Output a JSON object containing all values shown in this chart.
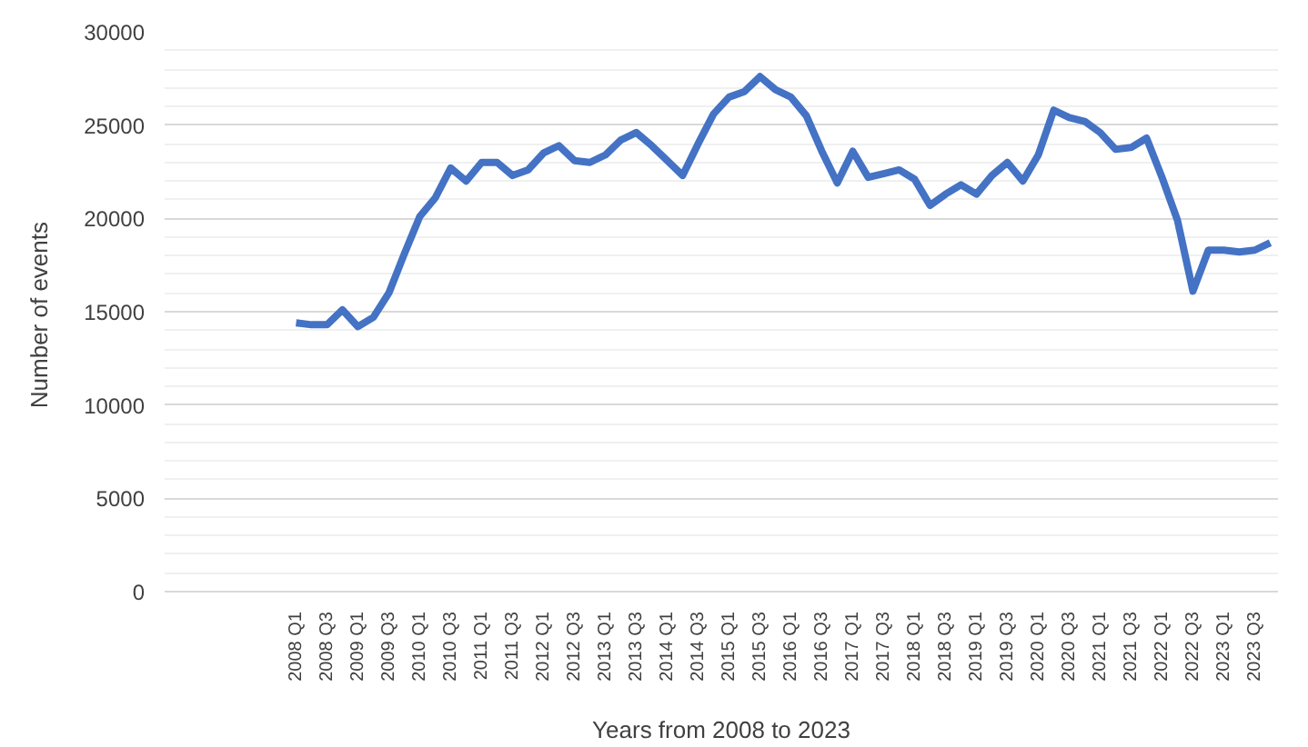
{
  "chart_data": {
    "type": "line",
    "xlabel": "Years from 2008 to 2023",
    "ylabel": "Number  of events",
    "categories": [
      null,
      null,
      null,
      null,
      null,
      null,
      null,
      null,
      "2008 Q1",
      null,
      "2008 Q3",
      null,
      "2009 Q1",
      null,
      "2009 Q3",
      null,
      "2010 Q1",
      null,
      "2010 Q3",
      null,
      "2011 Q1",
      null,
      "2011 Q3",
      null,
      "2012 Q1",
      null,
      "2012 Q3",
      null,
      "2013 Q1",
      null,
      "2013 Q3",
      null,
      "2014 Q1",
      null,
      "2014 Q3",
      null,
      "2015 Q1",
      null,
      "2015 Q3",
      null,
      "2016 Q1",
      null,
      "2016 Q3",
      null,
      "2017 Q1",
      null,
      "2017 Q3",
      null,
      "2018 Q1",
      null,
      "2018 Q3",
      null,
      "2019 Q1",
      null,
      "2019 Q3",
      null,
      "2020 Q1",
      null,
      "2020 Q3",
      null,
      "2021 Q1",
      null,
      "2021 Q3",
      null,
      "2022 Q1",
      null,
      "2022 Q3",
      null,
      "2023 Q1",
      null,
      "2023 Q3",
      null
    ],
    "series": [
      {
        "color": "#4472c4",
        "values": [
          null,
          null,
          null,
          null,
          null,
          null,
          null,
          null,
          14400,
          14300,
          14300,
          15100,
          14200,
          14700,
          16000,
          18100,
          20100,
          21100,
          22700,
          22000,
          23000,
          23000,
          22300,
          22600,
          23500,
          23900,
          23100,
          23000,
          23400,
          24200,
          24600,
          23900,
          23100,
          22300,
          24000,
          25600,
          26500,
          26800,
          27600,
          26900,
          26500,
          25500,
          23600,
          21900,
          23600,
          22200,
          22400,
          22600,
          22100,
          20700,
          21300,
          21800,
          21300,
          22300,
          23000,
          22000,
          23400,
          25800,
          25400,
          25200,
          24600,
          23700,
          23800,
          24300,
          22200,
          19900,
          16100,
          18300,
          18300,
          18200,
          18300,
          18700
        ]
      }
    ],
    "ylim": [
      0,
      30000
    ],
    "yticks": [
      0,
      5000,
      10000,
      15000,
      20000,
      25000,
      30000
    ],
    "grid": "y",
    "marker": "none",
    "line_style": "solid"
  }
}
